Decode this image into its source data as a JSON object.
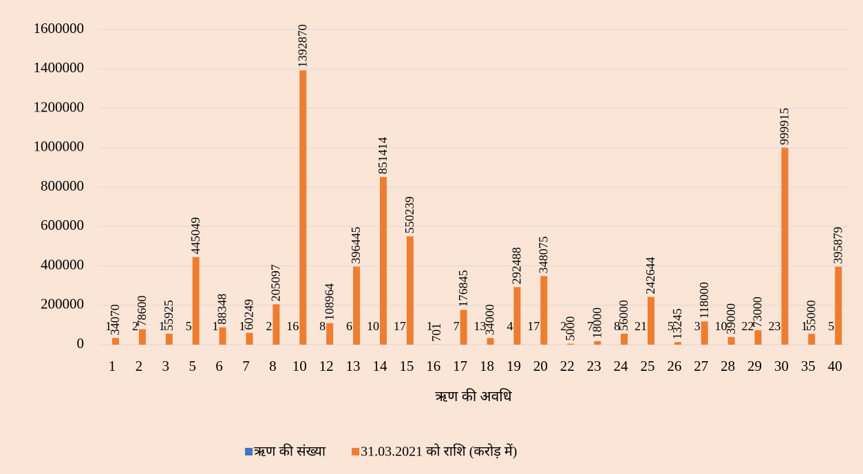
{
  "chart_data": {
    "type": "bar",
    "x_label": "ऋण की अवधि",
    "categories": [
      "1",
      "2",
      "3",
      "5",
      "6",
      "7",
      "8",
      "10",
      "12",
      "13",
      "14",
      "15",
      "16",
      "17",
      "18",
      "19",
      "20",
      "22",
      "23",
      "24",
      "25",
      "26",
      "27",
      "28",
      "29",
      "30",
      "35",
      "40"
    ],
    "series": [
      {
        "name": "ऋण की संख्या",
        "color": "#4472c4",
        "values": [
          1,
          2,
          1,
          5,
          1,
          1,
          2,
          16,
          8,
          6,
          10,
          17,
          1,
          7,
          13,
          4,
          17,
          2,
          7,
          8,
          21,
          5,
          3,
          10,
          22,
          23,
          1,
          5
        ]
      },
      {
        "name": "31.03.2021 को राशि (करोड़ में)",
        "color": "#ed7d31",
        "values": [
          34070,
          78600,
          55925,
          445049,
          88348,
          60249,
          205097,
          1392870,
          108964,
          396445,
          851414,
          550239,
          701,
          176845,
          34000,
          292488,
          348075,
          5000,
          18000,
          56000,
          242644,
          13245,
          118000,
          39000,
          73000,
          999915,
          55000,
          395879
        ]
      }
    ],
    "ylim": [
      0,
      1600000
    ],
    "yticks": [
      0,
      200000,
      400000,
      600000,
      800000,
      1000000,
      1200000,
      1400000,
      1600000
    ],
    "grid": true,
    "legend": "bottom"
  }
}
